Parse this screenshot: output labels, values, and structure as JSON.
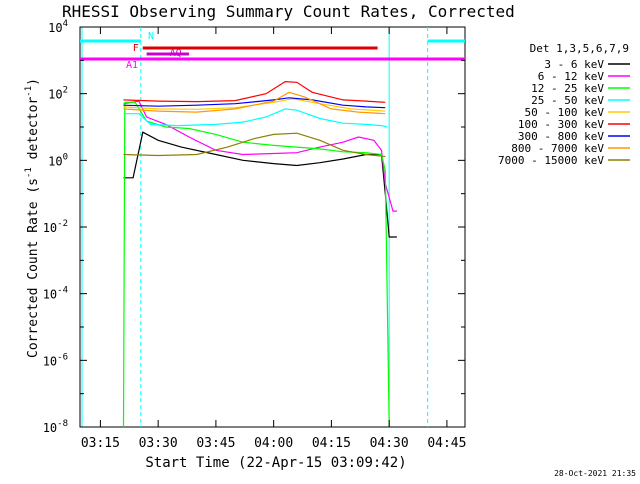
{
  "chart_data": {
    "type": "line",
    "title": "RHESSI Observing Summary Count Rates, Corrected",
    "xlabel": "Start Time (22-Apr-15 03:09:42)",
    "ylabel": "Corrected Count Rate (s⁻¹ detector⁻¹)",
    "ylabel_main": "Corrected Count Rate (s",
    "ylabel_sup1": "-1",
    "ylabel_mid": " detector",
    "ylabel_sup2": "-1",
    "ylabel_end": ")",
    "y_scale": "log",
    "ylim": [
      1e-08,
      10000.0
    ],
    "xlim": [
      "03:09:42",
      "04:49:42"
    ],
    "x_ticks": [
      "03:15",
      "03:30",
      "03:45",
      "04:00",
      "04:15",
      "04:30",
      "04:45"
    ],
    "y_ticks": [
      {
        "base": "10",
        "exp": "4",
        "value": 10000
      },
      {
        "base": "10",
        "exp": "2",
        "value": 100
      },
      {
        "base": "10",
        "exp": "0",
        "value": 1
      },
      {
        "base": "10",
        "exp": "-2",
        "value": 0.01
      },
      {
        "base": "10",
        "exp": "-4",
        "value": 0.0001
      },
      {
        "base": "10",
        "exp": "-6",
        "value": 1e-06
      },
      {
        "base": "10",
        "exp": "-8",
        "value": 1e-08
      }
    ],
    "grid": false,
    "legend_title": "Det 1,3,5,6,7,9",
    "legend_placement": "top-right",
    "series": [
      {
        "name": "3 - 6 keV",
        "color": "#000000",
        "points": [
          [
            "03:21:00",
            0.3
          ],
          [
            "03:23:30",
            0.3
          ],
          [
            "03:26:00",
            7
          ],
          [
            "03:30:00",
            4
          ],
          [
            "03:36:00",
            2.5
          ],
          [
            "03:45:00",
            1.5
          ],
          [
            "03:52:00",
            1.0
          ],
          [
            "04:00:00",
            0.8
          ],
          [
            "04:06:00",
            0.7
          ],
          [
            "04:12:00",
            0.85
          ],
          [
            "04:18:00",
            1.1
          ],
          [
            "04:24:00",
            1.5
          ],
          [
            "04:28:00",
            1.5
          ],
          [
            "04:29:00",
            0.1
          ],
          [
            "04:30:00",
            0.005
          ],
          [
            "04:32:00",
            0.005
          ]
        ]
      },
      {
        "name": "6 - 12 keV",
        "color": "#ff00ff",
        "points": [
          [
            "03:21:00",
            50
          ],
          [
            "03:25:00",
            60
          ],
          [
            "03:27:00",
            20
          ],
          [
            "03:32:00",
            12
          ],
          [
            "03:38:00",
            5
          ],
          [
            "03:45:00",
            2.0
          ],
          [
            "03:52:00",
            1.5
          ],
          [
            "04:00:00",
            1.6
          ],
          [
            "04:06:00",
            1.7
          ],
          [
            "04:12:00",
            2.5
          ],
          [
            "04:18:00",
            3.5
          ],
          [
            "04:22:00",
            5
          ],
          [
            "04:26:00",
            4
          ],
          [
            "04:28:00",
            2
          ],
          [
            "04:29:00",
            0.2
          ],
          [
            "04:31:00",
            0.03
          ],
          [
            "04:32:00",
            0.03
          ]
        ]
      },
      {
        "name": "12 - 25 keV",
        "color": "#00ff00",
        "points": [
          [
            "03:21:00",
            1e-08
          ],
          [
            "03:21:20",
            55
          ],
          [
            "03:24:00",
            55
          ],
          [
            "03:27:00",
            15
          ],
          [
            "03:32:00",
            10
          ],
          [
            "03:38:00",
            9
          ],
          [
            "03:45:00",
            6
          ],
          [
            "03:52:00",
            3.5
          ],
          [
            "04:00:00",
            2.8
          ],
          [
            "04:06:00",
            2.5
          ],
          [
            "04:12:00",
            2.2
          ],
          [
            "04:18:00",
            1.8
          ],
          [
            "04:24:00",
            1.7
          ],
          [
            "04:28:00",
            1.5
          ],
          [
            "04:29:00",
            0.5
          ],
          [
            "04:30:00",
            1e-08
          ]
        ]
      },
      {
        "name": "25 - 50 keV",
        "color": "#00ffff",
        "points": [
          [
            "03:21:00",
            25
          ],
          [
            "03:25:00",
            25
          ],
          [
            "03:28:00",
            12
          ],
          [
            "03:35:00",
            11
          ],
          [
            "03:45:00",
            12
          ],
          [
            "03:52:00",
            14
          ],
          [
            "03:58:00",
            20
          ],
          [
            "04:03:00",
            35
          ],
          [
            "04:06:00",
            32
          ],
          [
            "04:12:00",
            18
          ],
          [
            "04:18:00",
            13
          ],
          [
            "04:24:00",
            12
          ],
          [
            "04:28:00",
            11
          ],
          [
            "04:29:30",
            10
          ]
        ]
      },
      {
        "name": "50 - 100 keV",
        "color": "#ffcc00",
        "points": [
          [
            "03:21:00",
            40
          ],
          [
            "03:30:00",
            35
          ],
          [
            "03:40:00",
            34
          ],
          [
            "03:50:00",
            38
          ],
          [
            "04:00:00",
            55
          ],
          [
            "04:05:00",
            70
          ],
          [
            "04:10:00",
            55
          ],
          [
            "04:20:00",
            35
          ],
          [
            "04:29:00",
            30
          ]
        ]
      },
      {
        "name": "100 - 300 keV",
        "color": "#ff0000",
        "points": [
          [
            "03:21:00",
            65
          ],
          [
            "03:30:00",
            60
          ],
          [
            "03:40:00",
            58
          ],
          [
            "03:50:00",
            62
          ],
          [
            "03:58:00",
            100
          ],
          [
            "04:03:00",
            230
          ],
          [
            "04:06:00",
            220
          ],
          [
            "04:10:00",
            110
          ],
          [
            "04:18:00",
            65
          ],
          [
            "04:24:00",
            60
          ],
          [
            "04:29:00",
            55
          ]
        ]
      },
      {
        "name": "300 - 800 keV",
        "color": "#0000ff",
        "points": [
          [
            "03:21:00",
            45
          ],
          [
            "03:30:00",
            42
          ],
          [
            "03:40:00",
            45
          ],
          [
            "03:50:00",
            50
          ],
          [
            "04:00:00",
            65
          ],
          [
            "04:04:00",
            75
          ],
          [
            "04:10:00",
            65
          ],
          [
            "04:18:00",
            45
          ],
          [
            "04:24:00",
            40
          ],
          [
            "04:29:00",
            38
          ]
        ]
      },
      {
        "name": "800 - 7000 keV",
        "color": "#ff9900",
        "points": [
          [
            "03:21:00",
            35
          ],
          [
            "03:30:00",
            30
          ],
          [
            "03:40:00",
            28
          ],
          [
            "03:50:00",
            35
          ],
          [
            "04:00:00",
            60
          ],
          [
            "04:04:00",
            110
          ],
          [
            "04:08:00",
            80
          ],
          [
            "04:15:00",
            35
          ],
          [
            "04:22:00",
            28
          ],
          [
            "04:29:00",
            25
          ]
        ]
      },
      {
        "name": "7000 - 15000 keV",
        "color": "#8b8000",
        "points": [
          [
            "03:21:00",
            1.5
          ],
          [
            "03:30:00",
            1.4
          ],
          [
            "03:40:00",
            1.5
          ],
          [
            "03:48:00",
            2.5
          ],
          [
            "03:55:00",
            4.5
          ],
          [
            "04:00:00",
            6
          ],
          [
            "04:06:00",
            6.5
          ],
          [
            "04:12:00",
            4
          ],
          [
            "04:18:00",
            2
          ],
          [
            "04:24:00",
            1.5
          ],
          [
            "04:29:00",
            1.3
          ]
        ]
      }
    ],
    "annotations": {
      "N": {
        "label": "N",
        "color": "#00ffff",
        "segments": [
          [
            "03:09:42",
            "03:25:30"
          ],
          [
            "04:40:00",
            "04:49:42"
          ]
        ]
      },
      "F": {
        "label": "F",
        "color": "#dd0000",
        "segments": [
          [
            "03:26:00",
            "04:27:00"
          ]
        ]
      },
      "AQ": {
        "label": "AQ",
        "color": "#cc00cc",
        "segments": [
          [
            "03:27:00",
            "03:38:00"
          ]
        ]
      },
      "A1": {
        "label": "A1",
        "color": "#ff00ff",
        "segments": [
          [
            "03:09:42",
            "04:49:42"
          ]
        ]
      },
      "night_lines": [
        "03:25:30",
        "04:40:00"
      ],
      "day_lines": [
        "04:30:00"
      ]
    },
    "footer_date": "28-Oct-2021 21:35"
  }
}
